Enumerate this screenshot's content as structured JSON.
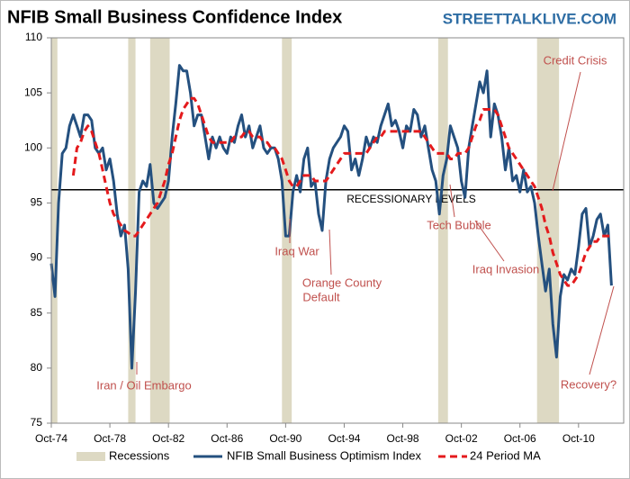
{
  "chart_data": {
    "type": "line",
    "title": "NFIB Small Business Confidence Index",
    "watermark": "STREETTALKLIVE.COM",
    "x": [
      "1974-10",
      "1975-01",
      "1975-04",
      "1975-07",
      "1975-10",
      "1976-01",
      "1976-04",
      "1976-07",
      "1976-10",
      "1977-01",
      "1977-04",
      "1977-07",
      "1977-10",
      "1978-01",
      "1978-04",
      "1978-07",
      "1978-10",
      "1979-01",
      "1979-04",
      "1979-07",
      "1979-10",
      "1980-01",
      "1980-04",
      "1980-07",
      "1980-10",
      "1981-01",
      "1981-04",
      "1981-07",
      "1981-10",
      "1982-01",
      "1982-04",
      "1982-07",
      "1982-10",
      "1983-01",
      "1983-04",
      "1983-07",
      "1983-10",
      "1984-01",
      "1984-04",
      "1984-07",
      "1984-10",
      "1985-01",
      "1985-04",
      "1985-07",
      "1985-10",
      "1986-01",
      "1986-04",
      "1986-07",
      "1986-10",
      "1987-01",
      "1987-04",
      "1987-07",
      "1987-10",
      "1988-01",
      "1988-04",
      "1988-07",
      "1988-10",
      "1989-01",
      "1989-04",
      "1989-07",
      "1989-10",
      "1990-01",
      "1990-04",
      "1990-07",
      "1990-10",
      "1991-01",
      "1991-04",
      "1991-07",
      "1991-10",
      "1992-01",
      "1992-04",
      "1992-07",
      "1992-10",
      "1993-01",
      "1993-04",
      "1993-07",
      "1993-10",
      "1994-01",
      "1994-04",
      "1994-07",
      "1994-10",
      "1995-01",
      "1995-04",
      "1995-07",
      "1995-10",
      "1996-01",
      "1996-04",
      "1996-07",
      "1996-10",
      "1997-01",
      "1997-04",
      "1997-07",
      "1997-10",
      "1998-01",
      "1998-04",
      "1998-07",
      "1998-10",
      "1999-01",
      "1999-04",
      "1999-07",
      "1999-10",
      "2000-01",
      "2000-04",
      "2000-07",
      "2000-10",
      "2001-01",
      "2001-04",
      "2001-07",
      "2001-10",
      "2002-01",
      "2002-04",
      "2002-07",
      "2002-10",
      "2003-01",
      "2003-04",
      "2003-07",
      "2003-10",
      "2004-01",
      "2004-04",
      "2004-07",
      "2004-10",
      "2005-01",
      "2005-04",
      "2005-07",
      "2005-10",
      "2006-01",
      "2006-04",
      "2006-07",
      "2006-10",
      "2007-01",
      "2007-04",
      "2007-07",
      "2007-10",
      "2008-01",
      "2008-04",
      "2008-07",
      "2008-10",
      "2009-01",
      "2009-04",
      "2009-07",
      "2009-10",
      "2010-01",
      "2010-04",
      "2010-07",
      "2010-10",
      "2011-01",
      "2011-04",
      "2011-07",
      "2011-10",
      "2012-01",
      "2012-04",
      "2012-07",
      "2012-10",
      "2013-01"
    ],
    "series": [
      {
        "name": "NFIB Small Business Optimism Index",
        "color": "#24507f",
        "dash": false,
        "values": [
          89.5,
          86.5,
          95,
          99.5,
          100,
          102,
          103,
          102,
          101,
          103,
          103,
          102.5,
          100,
          99.5,
          100,
          98,
          99,
          97,
          94,
          92,
          93,
          89,
          80,
          87,
          96,
          97,
          96.5,
          98.5,
          95,
          94.5,
          95,
          95.5,
          97,
          101,
          104,
          107.5,
          107,
          107,
          105,
          102,
          103,
          103,
          101,
          99,
          101,
          100,
          101,
          100,
          99.5,
          101,
          100.5,
          102,
          103,
          101,
          102,
          100,
          101,
          102,
          100,
          99.5,
          100,
          100,
          99,
          97,
          92,
          92,
          96,
          97.5,
          96,
          99,
          100,
          96.5,
          97,
          94,
          92.5,
          97,
          99,
          100,
          100.5,
          101,
          102,
          101.5,
          98,
          99,
          97.5,
          99,
          101,
          100,
          101,
          100.5,
          102,
          103,
          104,
          102,
          102.5,
          101.5,
          100,
          102,
          101.5,
          103.5,
          103,
          101,
          102,
          100,
          98,
          97,
          94,
          97.5,
          99,
          102,
          101,
          100,
          97,
          95.5,
          100,
          102,
          104,
          106,
          105,
          107,
          101,
          104,
          103,
          101,
          98,
          100,
          97,
          97.5,
          96,
          98,
          96,
          96.5,
          95,
          92,
          89.5,
          87,
          89,
          84,
          81,
          86.5,
          88.5,
          88,
          89,
          88.5,
          91,
          94,
          94.5,
          91,
          92,
          93.5,
          94,
          92,
          93,
          87.5
        ]
      },
      {
        "name": "24 Period MA",
        "color": "#e41a1c",
        "dash": true,
        "values": [
          null,
          null,
          null,
          null,
          null,
          null,
          97.5,
          100,
          100.5,
          101.5,
          102,
          101.5,
          100.5,
          99.5,
          98,
          96.5,
          95,
          94,
          93.5,
          93,
          92.5,
          92.3,
          92,
          92,
          92.5,
          93,
          93.5,
          94,
          94.5,
          95,
          96,
          97,
          98.5,
          99.5,
          101,
          102.5,
          103.5,
          104,
          104.5,
          104.5,
          104,
          103,
          102,
          101,
          100.5,
          100.5,
          100.5,
          100.5,
          100.5,
          100.5,
          101,
          101,
          101,
          101.5,
          101.5,
          101,
          101,
          101,
          100.5,
          100.5,
          100,
          100,
          99.5,
          99,
          98,
          97,
          96.5,
          96.5,
          97,
          97.5,
          97.5,
          97.5,
          97,
          97,
          97,
          97,
          97.5,
          98,
          98.5,
          99,
          99.5,
          99.5,
          99.5,
          99.5,
          99.5,
          99.5,
          99.5,
          100,
          100.5,
          101,
          101,
          101.5,
          101.5,
          101.5,
          101.5,
          101.5,
          101.5,
          101.5,
          101.5,
          101.5,
          101.5,
          101.5,
          101,
          100.5,
          100,
          99.5,
          99.5,
          99.5,
          99.5,
          99,
          99,
          99.5,
          99.5,
          99.5,
          100,
          101,
          102,
          102.5,
          103.5,
          103.5,
          103.5,
          103.5,
          103,
          102,
          101,
          100,
          99.5,
          99,
          98.5,
          98,
          97.5,
          97,
          96.5,
          95.5,
          94.5,
          93,
          92,
          90.5,
          89.5,
          88.5,
          88,
          87.5,
          87.5,
          88,
          88.5,
          89.5,
          90.5,
          91,
          91.5,
          91.5,
          92,
          92,
          92,
          92
        ]
      }
    ],
    "recessions": {
      "name": "Recessions",
      "color": "#ddd9c3",
      "periods": [
        {
          "start": "1974-10",
          "end": "1975-03"
        },
        {
          "start": "1980-01",
          "end": "1980-07"
        },
        {
          "start": "1981-07",
          "end": "1982-11"
        },
        {
          "start": "1990-07",
          "end": "1991-03"
        },
        {
          "start": "2001-03",
          "end": "2001-11"
        },
        {
          "start": "2007-12",
          "end": "2009-06"
        }
      ]
    },
    "reference_line": {
      "value": 96.2,
      "label": "RECESSIONARY LEVELS",
      "color": "#000000"
    },
    "annotations": [
      "Iran / Oil Embargo",
      "Iraq War",
      "Orange County",
      "Default",
      "Tech Bubble",
      "Iraq Invasion",
      "Credit Crisis",
      "Recovery?"
    ],
    "xlim": [
      "1974-10",
      "2013-11"
    ],
    "xticks": [
      {
        "value": "1974-10",
        "label": "Oct-74"
      },
      {
        "value": "1978-10",
        "label": "Oct-78"
      },
      {
        "value": "1982-10",
        "label": "Oct-82"
      },
      {
        "value": "1986-10",
        "label": "Oct-86"
      },
      {
        "value": "1990-10",
        "label": "Oct-90"
      },
      {
        "value": "1994-10",
        "label": "Oct-94"
      },
      {
        "value": "1998-10",
        "label": "Oct-98"
      },
      {
        "value": "2002-10",
        "label": "Oct-02"
      },
      {
        "value": "2006-10",
        "label": "Oct-06"
      },
      {
        "value": "2010-10",
        "label": "Oct-10"
      }
    ],
    "ylim": [
      75,
      110
    ],
    "yticks": [
      75,
      80,
      85,
      90,
      95,
      100,
      105,
      110
    ],
    "grid": false
  }
}
